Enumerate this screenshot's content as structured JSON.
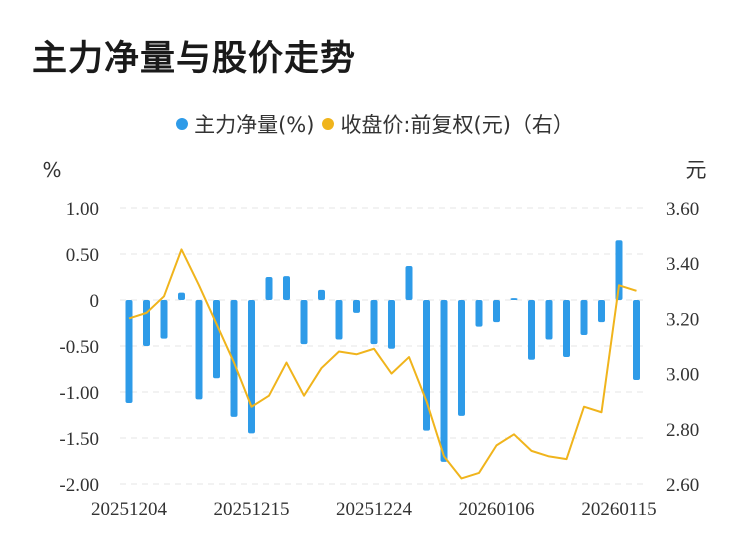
{
  "title": "主力净量与股价走势",
  "colors": {
    "bar": "#2e9be8",
    "line": "#f0b41c",
    "grid": "#e6e6e6",
    "text": "#333333"
  },
  "chart_data": {
    "type": "bar+line",
    "legend": [
      {
        "name": "主力净量(%)",
        "color": "#2e9be8",
        "marker": "dot"
      },
      {
        "name": "收盘价:前复权(元)（右）",
        "color": "#f0b41c",
        "marker": "dot"
      }
    ],
    "left_unit": "%",
    "right_unit": "元",
    "left_ticks": [
      "1.00",
      "0.50",
      "0",
      "-0.50",
      "-1.00",
      "-1.50",
      "-2.00"
    ],
    "left_tick_values": [
      1.0,
      0.5,
      0,
      -0.5,
      -1.0,
      -1.5,
      -2.0
    ],
    "right_ticks": [
      "3.60",
      "3.40",
      "3.20",
      "3.00",
      "2.80",
      "2.60"
    ],
    "right_tick_values": [
      3.6,
      3.4,
      3.2,
      3.0,
      2.8,
      2.6
    ],
    "ylim_left": [
      -2.0,
      1.0
    ],
    "ylim_right": [
      2.6,
      3.6
    ],
    "x_tick_labels": [
      {
        "index": 0,
        "label": "20251204"
      },
      {
        "index": 7,
        "label": "20251215"
      },
      {
        "index": 14,
        "label": "20251224"
      },
      {
        "index": 21,
        "label": "20260106"
      },
      {
        "index": 28,
        "label": "20260115"
      }
    ],
    "n_points": 30,
    "bar_values": [
      -1.12,
      -0.5,
      -0.42,
      0.08,
      -1.08,
      -0.85,
      -1.27,
      -1.45,
      0.25,
      0.26,
      -0.48,
      0.11,
      -0.43,
      -0.14,
      -0.48,
      -0.53,
      0.37,
      -1.42,
      -1.76,
      -1.26,
      -0.29,
      -0.24,
      0.02,
      -0.65,
      -0.43,
      -0.62,
      -0.38,
      -0.24,
      0.65,
      -0.87
    ],
    "line_values": [
      3.2,
      3.22,
      3.28,
      3.45,
      3.32,
      3.18,
      3.04,
      2.88,
      2.92,
      3.04,
      2.92,
      3.02,
      3.08,
      3.07,
      3.09,
      3.0,
      3.06,
      2.9,
      2.7,
      2.62,
      2.64,
      2.74,
      2.78,
      2.72,
      2.7,
      2.69,
      2.88,
      2.86,
      3.32,
      3.3
    ],
    "grid": "horizontal-dashed",
    "legend_position": "top-center"
  }
}
